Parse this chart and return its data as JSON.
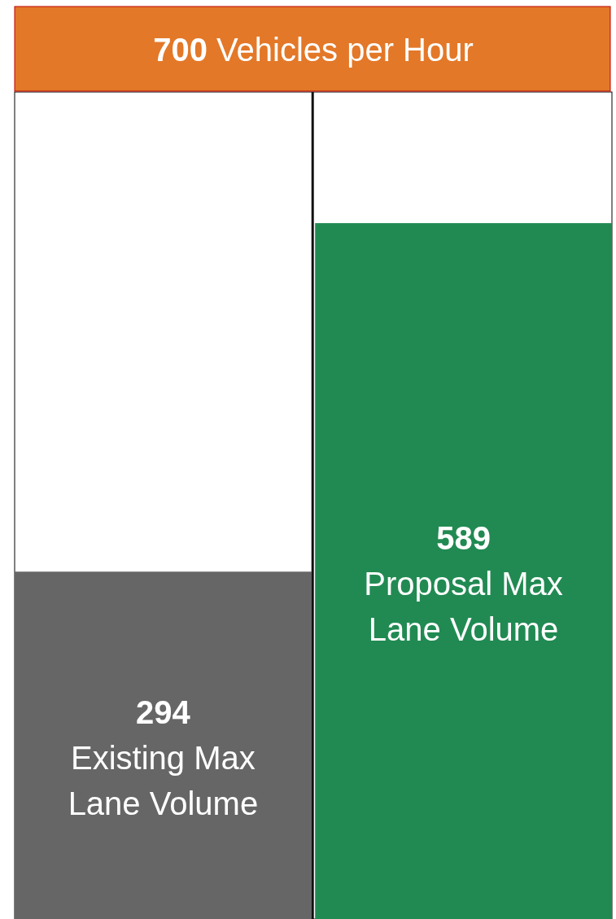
{
  "chart_data": {
    "type": "bar",
    "title": "700 Vehicles per Hour",
    "categories": [
      "Existing Max Lane Volume",
      "Proposal Max Lane Volume"
    ],
    "values": [
      294,
      589
    ],
    "colors": [
      "#666666",
      "#218a52"
    ],
    "ylim": [
      0,
      700
    ],
    "data_labels": true
  }
}
